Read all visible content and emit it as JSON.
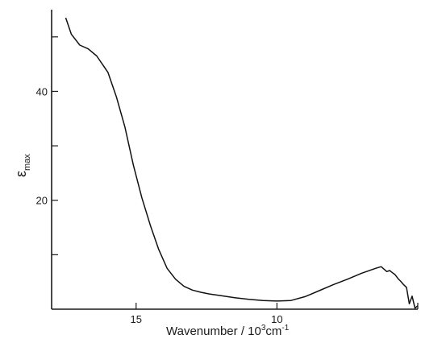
{
  "chart_data": {
    "type": "line",
    "title": "",
    "xlabel_main": "Wavenumber / 10",
    "xlabel_sup1": "3",
    "xlabel_unit": "cm",
    "xlabel_sup2": "-1",
    "ylabel_main": "ε",
    "ylabel_sub": "max",
    "x_reversed": true,
    "xlim": [
      18.0,
      5.0
    ],
    "ylim": [
      0,
      55
    ],
    "xticks": [
      15,
      10,
      5
    ],
    "xticklabels": [
      "15",
      "10",
      ""
    ],
    "yticks": [
      10,
      20,
      30,
      40,
      50
    ],
    "yticklabels": [
      "",
      "20",
      "",
      "40",
      ""
    ],
    "grid": false,
    "legend": "none",
    "series": [
      {
        "x": [
          17.5,
          17.3,
          17.0,
          16.7,
          16.4,
          16.0,
          15.7,
          15.4,
          15.1,
          14.8,
          14.5,
          14.2,
          13.9,
          13.6,
          13.3,
          13.0,
          12.7,
          12.4,
          12.0,
          11.5,
          11.0,
          10.5,
          10.0,
          9.5,
          9.0,
          8.5,
          8.0,
          7.5,
          7.0,
          6.5,
          6.3,
          6.1,
          6.0,
          5.9,
          5.8,
          5.7,
          5.6,
          5.5,
          5.4,
          5.3,
          5.2,
          5.1,
          5.0
        ],
        "y": [
          53.5,
          50.5,
          48.5,
          47.8,
          46.5,
          43.5,
          39.0,
          33.5,
          26.5,
          20.5,
          15.5,
          11.0,
          7.5,
          5.5,
          4.2,
          3.5,
          3.1,
          2.8,
          2.5,
          2.1,
          1.8,
          1.6,
          1.5,
          1.6,
          2.3,
          3.4,
          4.5,
          5.5,
          6.6,
          7.5,
          7.8,
          6.9,
          7.1,
          6.7,
          6.3,
          5.6,
          5.1,
          4.5,
          4.0,
          1.0,
          2.4,
          0.2,
          0.6
        ]
      }
    ]
  }
}
